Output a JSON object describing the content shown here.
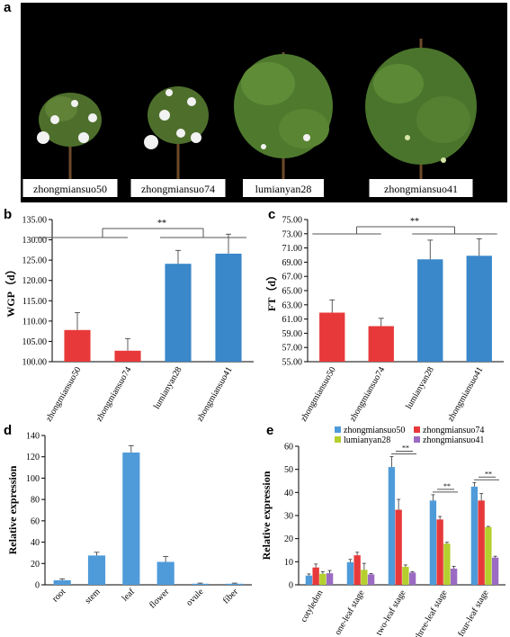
{
  "panels": {
    "a": "a",
    "b": "b",
    "c": "c",
    "d": "d",
    "e": "e"
  },
  "photo": {
    "labels": [
      "zhongmiansuo50",
      "zhongmiansuo74",
      "lumianyan28",
      "zhongmiansuo41"
    ],
    "colors": {
      "background": "#000000",
      "label_box": "#ffffff"
    }
  },
  "chart_data": [
    {
      "id": "b",
      "type": "bar",
      "categories": [
        "zhongmiansuo50",
        "zhongmiansuo74",
        "lumianyan28",
        "zhongmiansuo41"
      ],
      "values": [
        107.8,
        102.7,
        124.1,
        126.6
      ],
      "errors": [
        4.3,
        3.0,
        3.3,
        4.8
      ],
      "colors": [
        "#e8393a",
        "#e8393a",
        "#3a87c9",
        "#3a87c9"
      ],
      "ylabel": "WGP（d）",
      "ylim": [
        100,
        135
      ],
      "yticks": [
        "100.00",
        "105.00",
        "110.00",
        "115.00",
        "120.00",
        "125.00",
        "130.00",
        "135.00"
      ],
      "significance": "**"
    },
    {
      "id": "c",
      "type": "bar",
      "categories": [
        "zhongmiansuo50",
        "zhongmiansuo74",
        "lumianyan28",
        "zhongmiansuo41"
      ],
      "values": [
        61.9,
        60.0,
        69.4,
        69.9
      ],
      "errors": [
        1.8,
        1.1,
        2.7,
        2.4
      ],
      "colors": [
        "#e8393a",
        "#e8393a",
        "#3a87c9",
        "#3a87c9"
      ],
      "ylabel": "FT（d）",
      "ylim": [
        55,
        75
      ],
      "yticks": [
        "55.00",
        "57.00",
        "59.00",
        "61.00",
        "63.00",
        "65.00",
        "67.00",
        "69.00",
        "71.00",
        "73.00",
        "75.00"
      ],
      "significance": "**"
    },
    {
      "id": "d",
      "type": "bar",
      "categories": [
        "root",
        "stem",
        "leaf",
        "flower",
        "ovule",
        "fiber"
      ],
      "values": [
        4.3,
        27.5,
        124,
        21.5,
        1.0,
        1.0
      ],
      "errors": [
        1.2,
        3.0,
        6.5,
        5.0,
        0.6,
        0.6
      ],
      "color": "#4f9bd9",
      "ylabel": "Relative expression",
      "ylim": [
        0,
        140
      ],
      "yticks": [
        "0",
        "20",
        "40",
        "60",
        "80",
        "100",
        "120",
        "140"
      ]
    },
    {
      "id": "e",
      "type": "bar",
      "categories": [
        "cotyledon",
        "one-leaf stage",
        "two-leaf stage",
        "three-leaf stage",
        "four-leaf stage"
      ],
      "series": [
        {
          "name": "zhongmiansuo50",
          "color": "#4f9bd9",
          "values": [
            4.0,
            9.8,
            51.0,
            36.5,
            42.5
          ],
          "errors": [
            0.7,
            1.2,
            4.5,
            2.5,
            1.8
          ]
        },
        {
          "name": "zhongmiansuo74",
          "color": "#e8393a",
          "values": [
            7.5,
            12.8,
            32.5,
            28.3,
            36.5
          ],
          "errors": [
            1.5,
            1.3,
            4.5,
            1.3,
            3.0
          ]
        },
        {
          "name": "lumianyan28",
          "color": "#b5cf2e",
          "values": [
            4.8,
            6.5,
            7.8,
            17.8,
            25.0
          ],
          "errors": [
            0.9,
            2.8,
            0.8,
            0.6,
            0.3
          ]
        },
        {
          "name": "zhongmiansuo41",
          "color": "#9b6bc3",
          "values": [
            5.0,
            4.5,
            5.3,
            7.0,
            11.8
          ],
          "errors": [
            1.2,
            0.4,
            0.4,
            1.0,
            0.6
          ]
        }
      ],
      "ylabel": "Relative expression",
      "ylim": [
        0,
        60
      ],
      "yticks": [
        "0",
        "10",
        "20",
        "30",
        "40",
        "50",
        "60"
      ],
      "legend": "top",
      "significance": "**"
    }
  ]
}
